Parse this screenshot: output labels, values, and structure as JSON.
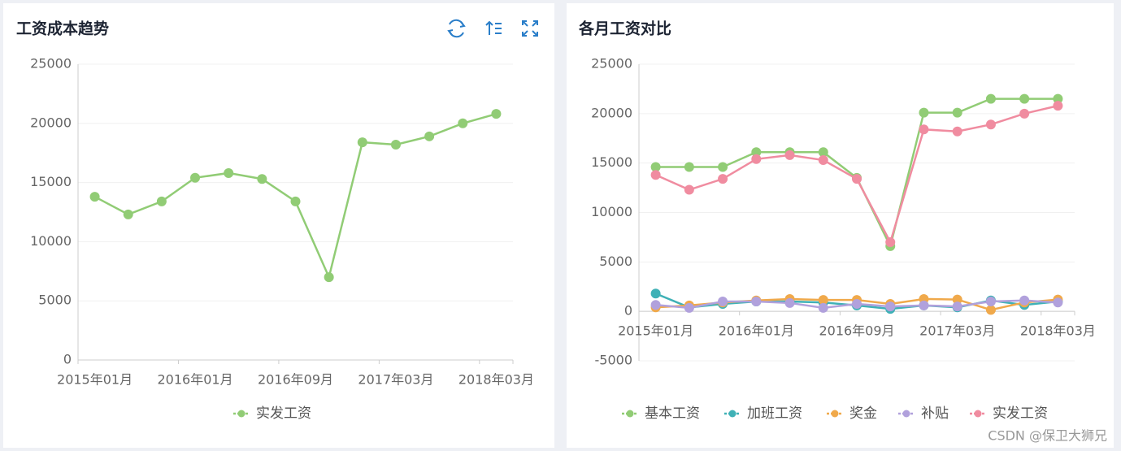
{
  "chart_data": [
    {
      "type": "line",
      "title": "工资成本趋势",
      "categories": [
        "2015年01月",
        null,
        null,
        "2016年01月",
        null,
        null,
        "2016年09月",
        null,
        null,
        "2017年03月",
        null,
        null,
        "2018年03月"
      ],
      "ylim": [
        0,
        25000
      ],
      "yticks": [
        0,
        5000,
        10000,
        15000,
        20000,
        25000
      ],
      "grid": true,
      "legend": "bottom",
      "series": [
        {
          "name": "实发工资",
          "color": "#91cc75",
          "values": [
            13800,
            12300,
            13400,
            15400,
            15800,
            15300,
            13400,
            7000,
            18400,
            18200,
            18900,
            20000,
            20800
          ]
        }
      ]
    },
    {
      "type": "line",
      "title": "各月工资对比",
      "categories": [
        "2015年01月",
        null,
        null,
        "2016年01月",
        null,
        null,
        "2016年09月",
        null,
        null,
        "2017年03月",
        null,
        null,
        "2018年03月"
      ],
      "ylim": [
        -5000,
        25000
      ],
      "yticks": [
        -5000,
        0,
        5000,
        10000,
        15000,
        20000,
        25000
      ],
      "grid": true,
      "legend": "bottom",
      "series": [
        {
          "name": "基本工资",
          "color": "#91cc75",
          "values": [
            14600,
            14600,
            14600,
            16100,
            16100,
            16100,
            13500,
            6600,
            20100,
            20100,
            21500,
            21500,
            21500
          ]
        },
        {
          "name": "加班工资",
          "color": "#3fb1b6",
          "values": [
            1800,
            400,
            750,
            1000,
            1000,
            900,
            600,
            250,
            600,
            400,
            1100,
            650,
            1000
          ]
        },
        {
          "name": "奖金",
          "color": "#f0a94b",
          "values": [
            400,
            600,
            900,
            1100,
            1250,
            1150,
            1150,
            750,
            1250,
            1200,
            150,
            900,
            1200
          ]
        },
        {
          "name": "补贴",
          "color": "#b1a1dc",
          "values": [
            650,
            350,
            1000,
            1000,
            850,
            350,
            750,
            500,
            600,
            500,
            1000,
            1100,
            900
          ]
        },
        {
          "name": "实发工资",
          "color": "#f08ca0",
          "values": [
            13800,
            12300,
            13400,
            15400,
            15800,
            15300,
            13400,
            7000,
            18400,
            18200,
            18900,
            20000,
            20800
          ]
        }
      ]
    }
  ],
  "watermark": "CSDN @保卫大狮兄"
}
